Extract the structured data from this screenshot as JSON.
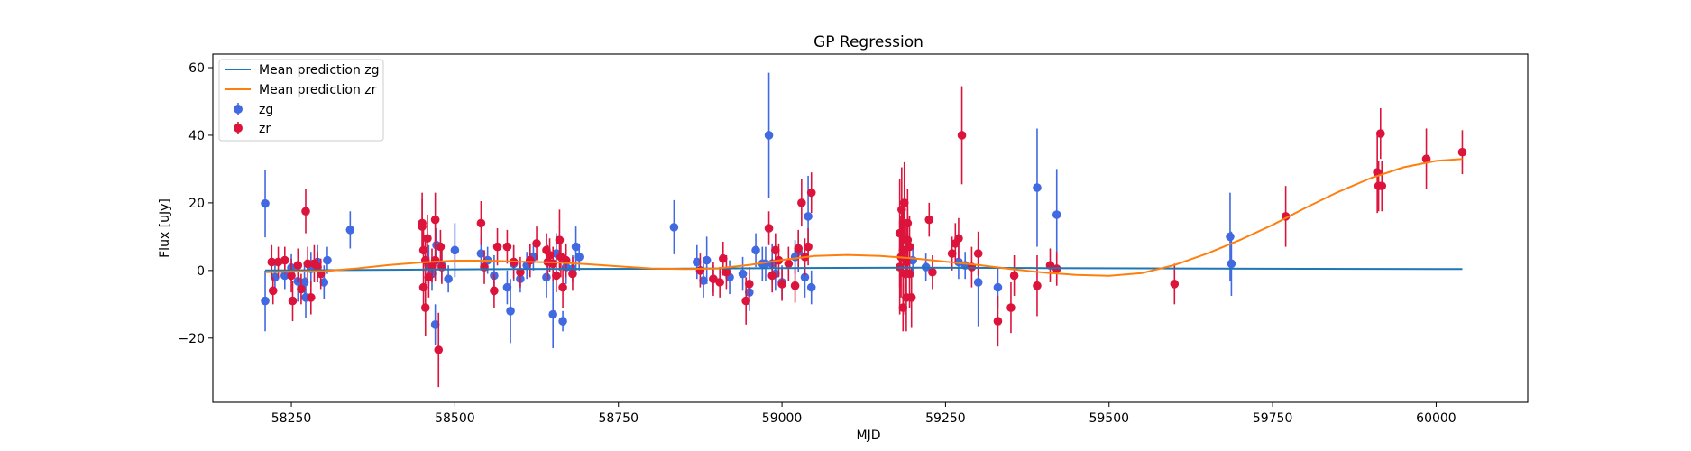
{
  "chart_data": {
    "type": "scatter",
    "title": "GP Regression",
    "xlabel": "MJD",
    "ylabel": "Flux [uJy]",
    "xlim": [
      58130,
      60140
    ],
    "ylim": [
      -39,
      64
    ],
    "xticks": [
      58250,
      58500,
      58750,
      59000,
      59250,
      59500,
      59750,
      60000
    ],
    "yticks": [
      -20,
      0,
      20,
      40,
      60
    ],
    "grid": false,
    "legend_position": "top-left",
    "legend": [
      "Mean prediction zg",
      "Mean prediction zr",
      "zg",
      "zr"
    ],
    "series": [
      {
        "name": "Mean prediction zg",
        "kind": "line",
        "color": "#1f77b4",
        "x": [
          58210,
          58400,
          58600,
          58800,
          59000,
          59200,
          59400,
          59600,
          59800,
          60000,
          60040
        ],
        "y": [
          0.0,
          0.2,
          0.4,
          0.5,
          0.7,
          0.8,
          0.7,
          0.6,
          0.5,
          0.4,
          0.4
        ]
      },
      {
        "name": "Mean prediction zr",
        "kind": "line",
        "color": "#ff7f0e",
        "x": [
          58210,
          58260,
          58300,
          58350,
          58400,
          58450,
          58500,
          58550,
          58600,
          58650,
          58700,
          58750,
          58800,
          58850,
          58900,
          58950,
          59000,
          59050,
          59100,
          59150,
          59200,
          59250,
          59300,
          59350,
          59400,
          59450,
          59500,
          59550,
          59600,
          59650,
          59700,
          59750,
          59800,
          59850,
          59900,
          59950,
          60000,
          60040
        ],
        "y": [
          -0.5,
          -0.3,
          -0.2,
          0.6,
          1.6,
          2.4,
          2.9,
          2.9,
          2.6,
          2.4,
          1.9,
          1.2,
          0.6,
          0.4,
          0.6,
          1.6,
          3.1,
          4.3,
          4.6,
          4.3,
          3.6,
          2.6,
          1.6,
          0.4,
          -0.6,
          -1.3,
          -1.6,
          -0.8,
          1.6,
          5.0,
          9.0,
          13.5,
          18.5,
          23.2,
          27.3,
          30.5,
          32.4,
          33.0
        ]
      },
      {
        "name": "zg",
        "kind": "errorbar",
        "color": "#4169e1",
        "x": [
          58210,
          58210,
          58225,
          58240,
          58250,
          58260,
          58270,
          58272,
          58280,
          58290,
          58300,
          58305,
          58340,
          58460,
          58465,
          58470,
          58472,
          58480,
          58490,
          58500,
          58540,
          58550,
          58560,
          58580,
          58585,
          58590,
          58600,
          58610,
          58620,
          58640,
          58650,
          58655,
          58665,
          58670,
          58680,
          58685,
          58690,
          58835,
          58870,
          58880,
          58885,
          58895,
          58920,
          58940,
          58950,
          58960,
          58970,
          58975,
          58980,
          58985,
          58990,
          59000,
          59020,
          59025,
          59035,
          59040,
          59045,
          59200,
          59220,
          59270,
          59280,
          59300,
          59330,
          59390,
          59420,
          59685,
          59687
        ],
        "y": [
          19.8,
          -9.0,
          -2.0,
          -1.5,
          0.8,
          -3.2,
          -3.5,
          -8.0,
          0.5,
          2.5,
          -3.5,
          3.0,
          12.0,
          1.5,
          -1.0,
          -16.0,
          7.5,
          1.5,
          -2.5,
          6.0,
          5.0,
          3.0,
          -1.5,
          -5.0,
          -12.0,
          2.0,
          -2.5,
          1.5,
          4.0,
          -2.0,
          -13.0,
          5.0,
          -15.0,
          1.0,
          0.5,
          7.0,
          4.0,
          12.8,
          2.5,
          -3.0,
          3.0,
          -2.5,
          -2.0,
          -1.0,
          -6.5,
          6.0,
          2.0,
          2.0,
          40.0,
          2.0,
          -1.0,
          -3.5,
          4.0,
          5.5,
          -2.0,
          16.0,
          -5.0,
          3.0,
          1.0,
          2.5,
          1.5,
          -3.5,
          -5.0,
          24.5,
          16.5,
          10.0,
          2.0
        ],
        "yerr": [
          10.0,
          9.0,
          5.0,
          4.0,
          4.0,
          6.0,
          5.0,
          6.0,
          5.0,
          5.0,
          5.0,
          4.0,
          5.5,
          6.0,
          5.0,
          6.0,
          5.0,
          5.0,
          4.0,
          8.0,
          5.0,
          4.0,
          6.0,
          5.0,
          9.5,
          5.0,
          4.0,
          4.0,
          4.0,
          6.0,
          10.0,
          6.0,
          3.0,
          5.0,
          4.0,
          6.0,
          4.0,
          8.0,
          5.0,
          5.0,
          7.0,
          4.0,
          5.0,
          5.0,
          5.5,
          5.0,
          5.0,
          5.0,
          18.5,
          6.0,
          5.0,
          5.0,
          5.0,
          6.0,
          6.0,
          12.0,
          5.0,
          5.0,
          4.0,
          5.0,
          4.0,
          13.0,
          6.0,
          17.5,
          13.5,
          13.0,
          9.5
        ]
      },
      {
        "name": "zr",
        "kind": "errorbar",
        "color": "#dc143c",
        "x": [
          58220,
          58222,
          58230,
          58240,
          58250,
          58252,
          58260,
          58265,
          58272,
          58275,
          58280,
          58285,
          58290,
          58295,
          58450,
          58450,
          58452,
          58452,
          58455,
          58455,
          58458,
          58460,
          58465,
          58470,
          58470,
          58475,
          58478,
          58480,
          58540,
          58545,
          58560,
          58565,
          58580,
          58590,
          58600,
          58615,
          58625,
          58640,
          58642,
          58645,
          58650,
          58655,
          58660,
          58662,
          58665,
          58670,
          58680,
          58875,
          58895,
          58905,
          58910,
          58915,
          58945,
          58950,
          58980,
          58985,
          58990,
          58995,
          59000,
          59010,
          59020,
          59025,
          59030,
          59035,
          59040,
          59045,
          59180,
          59180,
          59182,
          59183,
          59185,
          59185,
          59187,
          59188,
          59190,
          59190,
          59192,
          59192,
          59195,
          59195,
          59198,
          59225,
          59230,
          59260,
          59265,
          59270,
          59275,
          59290,
          59300,
          59330,
          59350,
          59355,
          59390,
          59410,
          59420,
          59600,
          59770,
          59910,
          59912,
          59915,
          59917,
          59985,
          60040
        ],
        "y": [
          2.5,
          -6.0,
          2.5,
          3.0,
          -1.5,
          -9.0,
          1.5,
          -5.5,
          17.5,
          2.0,
          -8.0,
          2.0,
          1.0,
          -1.0,
          14.0,
          13.0,
          6.0,
          -5.0,
          -11.0,
          3.0,
          9.5,
          -2.0,
          1.5,
          15.0,
          3.0,
          -23.5,
          7.0,
          1.0,
          14.0,
          1.0,
          -6.0,
          7.0,
          7.0,
          2.5,
          -0.5,
          3.0,
          8.0,
          6.0,
          2.5,
          4.5,
          2.0,
          -1.5,
          9.0,
          4.0,
          -5.0,
          3.0,
          -1.0,
          0.0,
          -2.5,
          -3.5,
          3.5,
          -0.5,
          -9.0,
          -4.0,
          12.5,
          -1.5,
          6.0,
          3.0,
          -4.0,
          2.0,
          -4.5,
          6.5,
          20.0,
          4.0,
          7.0,
          23.0,
          11.0,
          1.0,
          4.0,
          18.0,
          -11.0,
          6.0,
          20.0,
          -1.0,
          2.5,
          -8.0,
          14.0,
          9.0,
          -1.0,
          7.0,
          -8.0,
          15.0,
          -0.5,
          5.0,
          8.0,
          9.5,
          40.0,
          1.0,
          5.0,
          -15.0,
          -11.0,
          -1.5,
          -4.5,
          1.5,
          0.5,
          -4.0,
          16.0,
          29.0,
          25.0,
          40.5,
          25.0,
          33.0,
          35.0
        ],
        "yerr": [
          5.0,
          4.0,
          4.5,
          4.0,
          5.0,
          6.0,
          5.0,
          4.5,
          6.5,
          5.0,
          5.0,
          5.5,
          4.5,
          4.5,
          9.0,
          8.0,
          6.5,
          7.0,
          8.5,
          6.0,
          7.0,
          6.0,
          5.0,
          8.0,
          6.0,
          11.0,
          5.0,
          5.0,
          6.5,
          5.0,
          5.0,
          5.5,
          5.0,
          5.0,
          4.5,
          5.0,
          5.0,
          5.0,
          5.0,
          5.0,
          5.0,
          5.0,
          9.0,
          6.0,
          6.0,
          5.0,
          5.0,
          5.0,
          5.0,
          4.5,
          5.0,
          5.0,
          7.0,
          5.0,
          5.0,
          5.0,
          5.0,
          5.0,
          5.0,
          5.0,
          5.0,
          5.5,
          7.0,
          5.5,
          5.5,
          6.0,
          16.0,
          14.0,
          12.0,
          12.5,
          7.0,
          14.0,
          12.0,
          12.0,
          11.0,
          10.0,
          10.0,
          10.0,
          10.0,
          9.0,
          9.0,
          5.0,
          5.0,
          5.0,
          6.0,
          6.0,
          14.5,
          6.0,
          6.5,
          7.5,
          7.5,
          6.0,
          9.0,
          5.0,
          5.0,
          6.0,
          9.0,
          12.0,
          7.5,
          7.5,
          7.5,
          9.0,
          6.5
        ]
      }
    ]
  }
}
